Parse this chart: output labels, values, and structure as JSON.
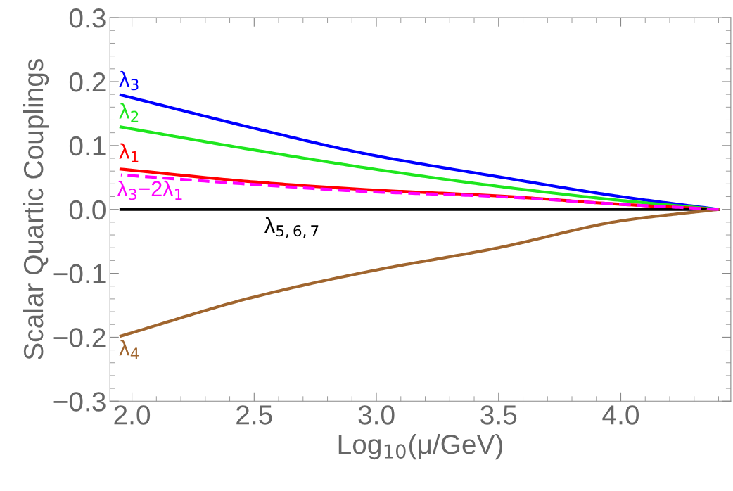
{
  "chart_data": {
    "type": "line",
    "xlabel": "Log$_{10}$(μ/GeV)",
    "ylabel": "Scalar Quartic Couplings",
    "xlim": [
      1.91,
      4.45
    ],
    "xticks": [
      {
        "value": 2.0,
        "label": "2.0"
      },
      2.5,
      {
        "value": 3.0,
        "label": "3.0"
      },
      3.5,
      {
        "value": 4.0,
        "label": "4.0"
      }
    ],
    "ylim": [
      -0.3,
      0.3
    ],
    "yticks": [
      {
        "value": -0.3,
        "label": "−0.3"
      },
      {
        "value": -0.2,
        "label": "−0.2"
      },
      {
        "value": -0.1,
        "label": "−0.1"
      },
      {
        "value": 0.0,
        "label": "0.0"
      },
      0.1,
      0.2,
      0.3
    ],
    "grid": false,
    "legend": false,
    "marker": "none",
    "series": [
      {
        "name": "λ$_{3}$",
        "color": "#0000ff",
        "x": [
          1.955,
          2.5,
          2.957,
          3.5,
          4.0,
          4.4
        ],
        "values": [
          0.179,
          0.127,
          0.087,
          0.051,
          0.02,
          0.0
        ]
      },
      {
        "name": "λ$_{2}$",
        "color": "#1ee61e",
        "x": [
          1.955,
          2.5,
          2.957,
          3.5,
          4.0,
          4.4
        ],
        "values": [
          0.129,
          0.093,
          0.065,
          0.036,
          0.014,
          0.0
        ]
      },
      {
        "name": "λ$_{1}$",
        "color": "#ff0000",
        "x": [
          1.955,
          2.5,
          2.957,
          3.5,
          4.0,
          4.4
        ],
        "values": [
          0.063,
          0.043,
          0.031,
          0.021,
          0.008,
          0.0
        ]
      },
      {
        "name": "λ$_{3}$−2λ$_{1}$",
        "color": "#ff00ff",
        "line_style": "dashed",
        "x": [
          1.955,
          2.5,
          2.957,
          3.5,
          4.0,
          4.4
        ],
        "values": [
          0.054,
          0.039,
          0.028,
          0.02,
          0.008,
          0.0
        ]
      },
      {
        "name": "λ$_{5,6,7}$",
        "color": "#000000",
        "x": [
          1.955,
          4.4
        ],
        "values": [
          0.0,
          0.0
        ]
      },
      {
        "name": "λ$_{4}$",
        "color": "#a0652e",
        "x": [
          1.955,
          2.5,
          2.957,
          3.5,
          4.0,
          4.4
        ],
        "values": [
          -0.198,
          -0.137,
          -0.098,
          -0.06,
          -0.018,
          0.0
        ]
      }
    ]
  }
}
